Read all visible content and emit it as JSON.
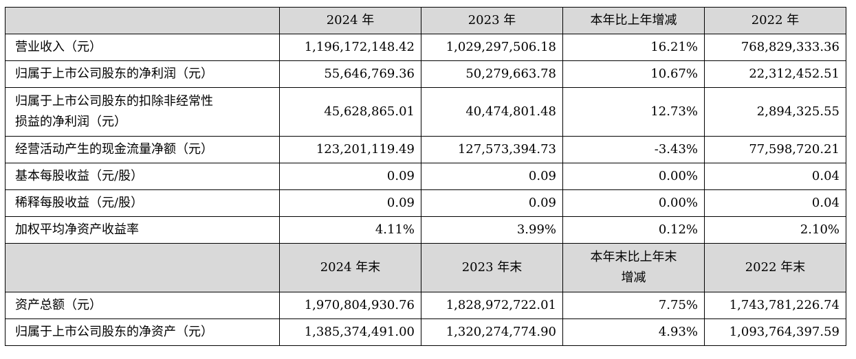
{
  "table1": {
    "headers": [
      "",
      "2024 年",
      "2023 年",
      "本年比上年增减",
      "2022 年"
    ],
    "rows": [
      {
        "label": "营业收入（元）",
        "values": [
          "1,196,172,148.42",
          "1,029,297,506.18",
          "16.21%",
          "768,829,333.36"
        ]
      },
      {
        "label": "归属于上市公司股东的净利润（元）",
        "values": [
          "55,646,769.36",
          "50,279,663.78",
          "10.67%",
          "22,312,452.51"
        ]
      },
      {
        "label_lines": [
          "归属于上市公司股东的扣除非经常性",
          "损益的净利润（元）"
        ],
        "values": [
          "45,628,865.01",
          "40,474,801.48",
          "12.73%",
          "2,894,325.55"
        ]
      },
      {
        "label": "经营活动产生的现金流量净额（元）",
        "values": [
          "123,201,119.49",
          "127,573,394.73",
          "-3.43%",
          "77,598,720.21"
        ]
      },
      {
        "label": "基本每股收益（元/股）",
        "values": [
          "0.09",
          "0.09",
          "0.00%",
          "0.04"
        ]
      },
      {
        "label": "稀释每股收益（元/股）",
        "values": [
          "0.09",
          "0.09",
          "0.00%",
          "0.04"
        ]
      },
      {
        "label": "加权平均净资产收益率",
        "values": [
          "4.11%",
          "3.99%",
          "0.12%",
          "2.10%"
        ]
      }
    ]
  },
  "table2": {
    "headers": [
      "",
      "2024 年末",
      "2023 年末",
      [
        "本年末比上年末",
        "增减"
      ],
      "2022 年末"
    ],
    "rows": [
      {
        "label": "资产总额（元）",
        "values": [
          "1,970,804,930.76",
          "1,828,972,722.01",
          "7.75%",
          "1,743,781,226.74"
        ]
      },
      {
        "label": "归属于上市公司股东的净资产（元）",
        "values": [
          "1,385,374,491.00",
          "1,320,274,774.90",
          "4.93%",
          "1,093,764,397.59"
        ]
      }
    ]
  }
}
